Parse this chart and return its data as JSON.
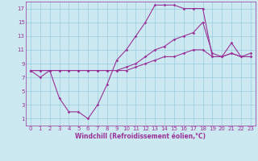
{
  "xlabel": "Windchill (Refroidissement éolien,°C)",
  "bg_color": "#cce8f0",
  "line_color": "#993399",
  "grid_color": "#99cce0",
  "xlim": [
    -0.5,
    23.5
  ],
  "ylim": [
    0,
    18
  ],
  "xticks": [
    0,
    1,
    2,
    3,
    4,
    5,
    6,
    7,
    8,
    9,
    10,
    11,
    12,
    13,
    14,
    15,
    16,
    17,
    18,
    19,
    20,
    21,
    22,
    23
  ],
  "yticks": [
    1,
    3,
    5,
    7,
    9,
    11,
    13,
    15,
    17
  ],
  "line1_x": [
    0,
    1,
    2,
    3,
    4,
    5,
    6,
    7,
    8,
    9,
    10,
    11,
    12,
    13,
    14,
    15,
    16,
    17,
    18,
    19,
    20,
    21,
    22,
    23
  ],
  "line1_y": [
    8,
    7,
    8,
    4,
    2,
    2,
    1,
    3,
    6,
    9.5,
    11,
    13,
    15,
    17.5,
    17.5,
    17.5,
    17,
    17,
    17,
    10,
    10,
    12,
    10,
    10
  ],
  "line2_x": [
    0,
    1,
    2,
    3,
    4,
    5,
    6,
    7,
    8,
    9,
    10,
    11,
    12,
    13,
    14,
    15,
    16,
    17,
    18,
    19,
    20,
    21,
    22,
    23
  ],
  "line2_y": [
    8,
    8,
    8,
    8,
    8,
    8,
    8,
    8,
    8,
    8,
    8.5,
    9,
    10,
    11,
    11.5,
    12.5,
    13,
    13.5,
    15,
    10.5,
    10,
    10.5,
    10,
    10.5
  ],
  "line3_x": [
    0,
    1,
    2,
    3,
    4,
    5,
    6,
    7,
    8,
    9,
    10,
    11,
    12,
    13,
    14,
    15,
    16,
    17,
    18,
    19,
    20,
    21,
    22,
    23
  ],
  "line3_y": [
    8,
    8,
    8,
    8,
    8,
    8,
    8,
    8,
    8,
    8,
    8,
    8.5,
    9,
    9.5,
    10,
    10,
    10.5,
    11,
    11,
    10,
    10,
    10.5,
    10,
    10
  ],
  "xlabel_fontsize": 5.5,
  "tick_fontsize": 5.0
}
